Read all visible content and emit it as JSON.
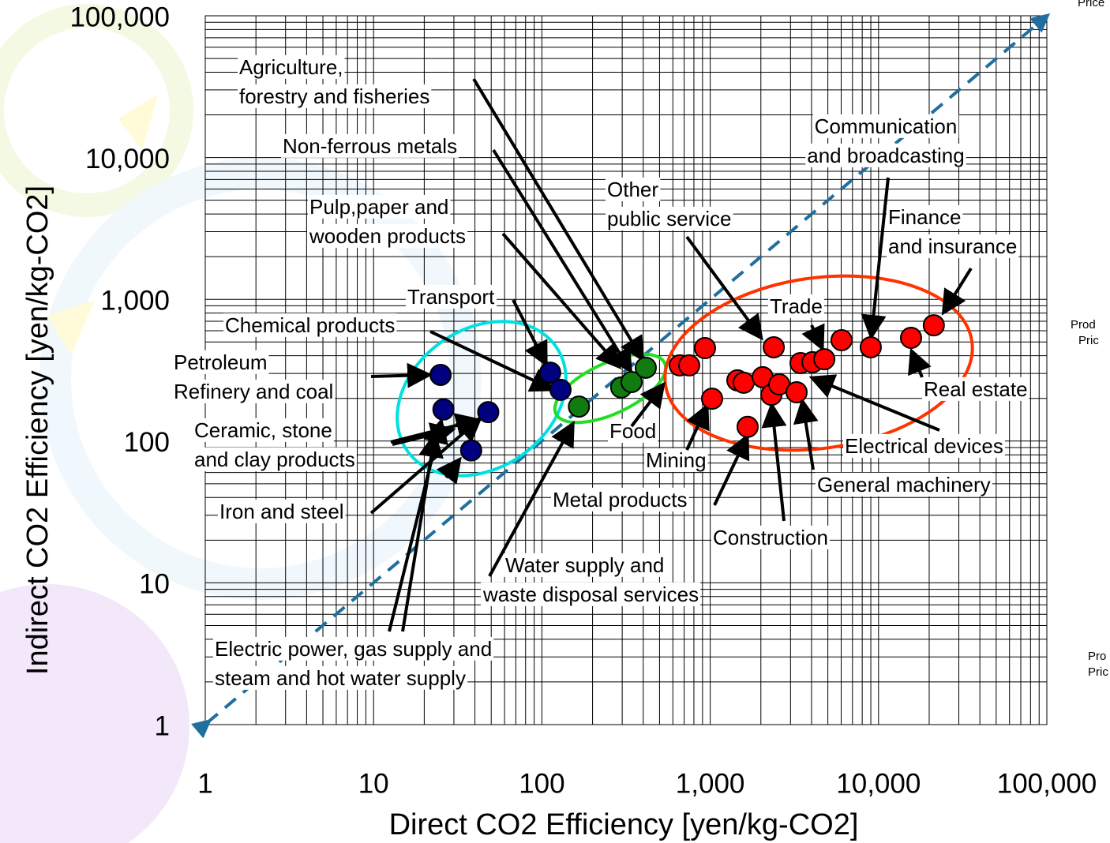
{
  "chart_data": {
    "type": "scatter",
    "x_label": "Direct CO2 Efficiency [yen/kg-CO2]",
    "y_label": "Indirect CO2 Efficiency [yen/kg-CO2]",
    "xscale": "log",
    "yscale": "log",
    "grid": true,
    "xlim": [
      1,
      100000
    ],
    "ylim": [
      1,
      100000
    ],
    "xticks": [
      1,
      10,
      100,
      {
        "value": 1000,
        "label": "1,000"
      },
      {
        "value": 10000,
        "label": "10,000"
      },
      {
        "value": 100000,
        "label": "100,000"
      }
    ],
    "yticks": [
      1,
      10,
      100,
      {
        "value": 1000,
        "label": "1,000"
      },
      {
        "value": 10000,
        "label": "10,000"
      },
      {
        "value": 100000,
        "label": "100,000"
      }
    ],
    "series": [
      {
        "color": "#000080",
        "x": [
          25,
          26,
          48,
          38,
          112,
          129
        ],
        "y": [
          293,
          167,
          160,
          86,
          304,
          230
        ]
      },
      {
        "color": "#117a11",
        "x": [
          166,
          296,
          341,
          414
        ],
        "y": [
          175,
          239,
          261,
          329
        ]
      },
      {
        "color": "#ff0000",
        "x": [
          659,
          750,
          931,
          1026,
          1450,
          1668,
          1580,
          2050,
          2310,
          2385,
          2570,
          3260,
          3440,
          4050,
          4760,
          6030,
          8990,
          15600,
          21300
        ],
        "y": [
          342,
          342,
          453,
          199,
          268,
          126,
          258,
          282,
          212,
          459,
          251,
          221,
          355,
          360,
          378,
          515,
          459,
          535,
          656
        ]
      }
    ],
    "annotations": [
      [
        "Agriculture,",
        "forestry and fisheries"
      ],
      [
        "Non-ferrous metals"
      ],
      [
        "Pulp,paper and",
        "wooden products"
      ],
      [
        "Transport"
      ],
      [
        "Chemical products"
      ],
      [
        "Petroleum",
        "Refinery and coal"
      ],
      [
        "Ceramic, stone",
        "and clay products"
      ],
      [
        "Iron and steel"
      ],
      [
        "Electric power, gas supply and",
        "steam and hot water supply"
      ],
      [
        "Other",
        "public service"
      ],
      [
        "Communication",
        "and broadcasting"
      ],
      [
        "Finance",
        "and insurance"
      ],
      [
        "Trade"
      ],
      [
        "Real estate"
      ],
      [
        "Electrical devices"
      ],
      [
        "General machinery"
      ],
      [
        "Construction"
      ],
      [
        "Mining"
      ],
      [
        "Metal products"
      ],
      [
        "Food"
      ],
      [
        "Water supply and",
        "waste disposal services"
      ]
    ]
  },
  "side_text": [
    "Price",
    "Prod",
    "Pric",
    "Pro",
    "Pric"
  ]
}
